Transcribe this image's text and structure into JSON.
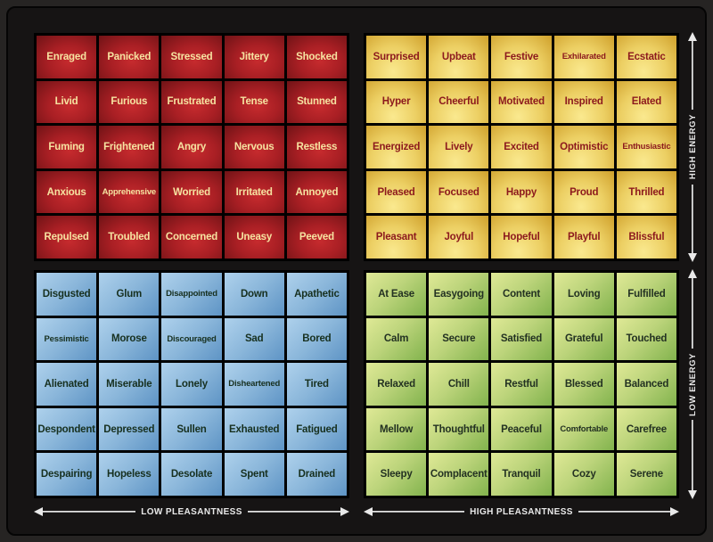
{
  "axes": {
    "high_energy": "HIGH ENERGY",
    "low_energy": "LOW ENERGY",
    "low_pleasantness": "LOW PLEASANTNESS",
    "high_pleasantness": "HIGH PLEASANTNESS"
  },
  "colors": {
    "red_quadrant": "#B02125",
    "yellow_quadrant": "#ECCF63",
    "blue_quadrant": "#8AB6DA",
    "green_quadrant": "#BCD47B",
    "red_text": "#F6E3A1",
    "yellow_text": "#8C191D",
    "blue_text": "#17301F",
    "green_text": "#233122",
    "axis_color": "#E9E9E9",
    "background": "#161414"
  },
  "chart_data": {
    "type": "heatmap",
    "description": "Mood meter grid: energy (vertical) vs pleasantness (horizontal), four 5x5 quadrants of emotion words",
    "x_axis": {
      "left_label": "LOW PLEASANTNESS",
      "right_label": "HIGH PLEASANTNESS"
    },
    "y_axis": {
      "top_label": "HIGH ENERGY",
      "bottom_label": "LOW ENERGY"
    },
    "quadrants": [
      {
        "name": "high-energy-low-pleasantness",
        "position": "top-left",
        "tone": "red",
        "rows": [
          [
            "Enraged",
            "Panicked",
            "Stressed",
            "Jittery",
            "Shocked"
          ],
          [
            "Livid",
            "Furious",
            "Frustrated",
            "Tense",
            "Stunned"
          ],
          [
            "Fuming",
            "Frightened",
            "Angry",
            "Nervous",
            "Restless"
          ],
          [
            "Anxious",
            "Apprehensive",
            "Worried",
            "Irritated",
            "Annoyed"
          ],
          [
            "Repulsed",
            "Troubled",
            "Concerned",
            "Uneasy",
            "Peeved"
          ]
        ]
      },
      {
        "name": "high-energy-high-pleasantness",
        "position": "top-right",
        "tone": "yellow",
        "rows": [
          [
            "Surprised",
            "Upbeat",
            "Festive",
            "Exhilarated",
            "Ecstatic"
          ],
          [
            "Hyper",
            "Cheerful",
            "Motivated",
            "Inspired",
            "Elated"
          ],
          [
            "Energized",
            "Lively",
            "Excited",
            "Optimistic",
            "Enthusiastic"
          ],
          [
            "Pleased",
            "Focused",
            "Happy",
            "Proud",
            "Thrilled"
          ],
          [
            "Pleasant",
            "Joyful",
            "Hopeful",
            "Playful",
            "Blissful"
          ]
        ]
      },
      {
        "name": "low-energy-low-pleasantness",
        "position": "bottom-left",
        "tone": "blue",
        "rows": [
          [
            "Disgusted",
            "Glum",
            "Disappointed",
            "Down",
            "Apathetic"
          ],
          [
            "Pessimistic",
            "Morose",
            "Discouraged",
            "Sad",
            "Bored"
          ],
          [
            "Alienated",
            "Miserable",
            "Lonely",
            "Disheartened",
            "Tired"
          ],
          [
            "Despondent",
            "Depressed",
            "Sullen",
            "Exhausted",
            "Fatigued"
          ],
          [
            "Despairing",
            "Hopeless",
            "Desolate",
            "Spent",
            "Drained"
          ]
        ]
      },
      {
        "name": "low-energy-high-pleasantness",
        "position": "bottom-right",
        "tone": "green",
        "rows": [
          [
            "At Ease",
            "Easygoing",
            "Content",
            "Loving",
            "Fulfilled"
          ],
          [
            "Calm",
            "Secure",
            "Satisfied",
            "Grateful",
            "Touched"
          ],
          [
            "Relaxed",
            "Chill",
            "Restful",
            "Blessed",
            "Balanced"
          ],
          [
            "Mellow",
            "Thoughtful",
            "Peaceful",
            "Comfortable",
            "Carefree"
          ],
          [
            "Sleepy",
            "Complacent",
            "Tranquil",
            "Cozy",
            "Serene"
          ]
        ]
      }
    ]
  }
}
